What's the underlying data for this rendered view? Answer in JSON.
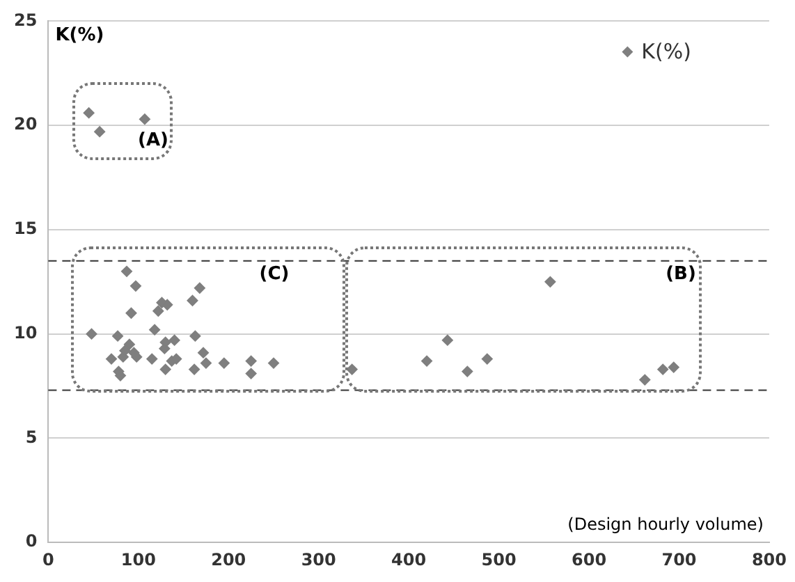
{
  "chart_data": {
    "type": "scatter",
    "xlabel": "(Design hourly volume)",
    "ylabel": "K(%)",
    "xlim": [
      0,
      800
    ],
    "xticks": [
      0,
      100,
      200,
      300,
      400,
      500,
      600,
      700,
      800
    ],
    "ylim": [
      0,
      25
    ],
    "yticks": [
      0,
      5,
      10,
      15,
      20,
      25
    ],
    "grid": "y",
    "legend": "top right",
    "marker": "diamond",
    "series": [
      {
        "name": "K(%)",
        "color": "#7f7f7f",
        "x": [
          45,
          57,
          107,
          48,
          70,
          77,
          78,
          80,
          83,
          87,
          85,
          90,
          92,
          95,
          97,
          98,
          115,
          118,
          122,
          126,
          129,
          130,
          130,
          132,
          137,
          140,
          142,
          160,
          162,
          163,
          168,
          172,
          175,
          195,
          225,
          225,
          250,
          337,
          420,
          443,
          465,
          487,
          557,
          662,
          682,
          694
        ],
        "values": [
          20.6,
          19.7,
          20.3,
          10.0,
          8.8,
          9.9,
          8.2,
          8.0,
          8.9,
          13.0,
          9.2,
          9.5,
          11.0,
          9.1,
          12.3,
          8.9,
          8.8,
          10.2,
          11.1,
          11.5,
          9.3,
          9.6,
          8.3,
          11.4,
          8.7,
          9.7,
          8.8,
          11.6,
          8.3,
          9.9,
          12.2,
          9.1,
          8.6,
          8.6,
          8.7,
          8.1,
          8.6,
          8.3,
          8.7,
          9.7,
          8.2,
          8.8,
          12.5,
          7.8,
          8.3,
          8.4
        ]
      }
    ],
    "ref_lines": [
      {
        "axis": "y",
        "value": 13.5,
        "color": "#333333",
        "line_style": "dashed"
      },
      {
        "axis": "y",
        "value": 7.3,
        "color": "#333333",
        "line_style": "dashed"
      }
    ],
    "annotations": [
      "(A)",
      "(C)",
      "(B)"
    ]
  }
}
